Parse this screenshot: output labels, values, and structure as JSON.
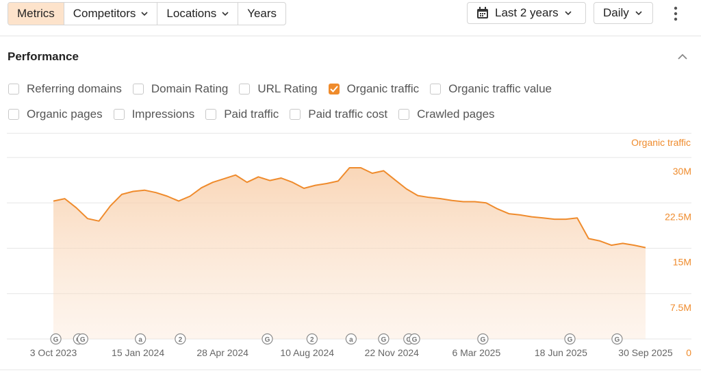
{
  "toolbar": {
    "tabs": [
      "Metrics",
      "Competitors",
      "Locations",
      "Years"
    ],
    "period": "Last 2 years",
    "interval": "Daily"
  },
  "panel": {
    "title": "Performance",
    "metrics": [
      [
        {
          "label": "Referring domains",
          "checked": false
        },
        {
          "label": "Domain Rating",
          "checked": false
        },
        {
          "label": "URL Rating",
          "checked": false
        },
        {
          "label": "Organic traffic",
          "checked": true
        },
        {
          "label": "Organic traffic value",
          "checked": false
        }
      ],
      [
        {
          "label": "Organic pages",
          "checked": false
        },
        {
          "label": "Impressions",
          "checked": false
        },
        {
          "label": "Paid traffic",
          "checked": false
        },
        {
          "label": "Paid traffic cost",
          "checked": false
        },
        {
          "label": "Crawled pages",
          "checked": false
        }
      ]
    ]
  },
  "chart_data": {
    "type": "area",
    "ylabel": "Organic traffic",
    "color": "#ef8b2c",
    "grid": true,
    "x": [
      "2023-10-03",
      "2023-10-17",
      "2023-10-31",
      "2023-11-14",
      "2023-11-28",
      "2023-12-12",
      "2023-12-26",
      "2024-01-09",
      "2024-01-23",
      "2024-02-06",
      "2024-02-20",
      "2024-03-05",
      "2024-03-19",
      "2024-04-02",
      "2024-04-16",
      "2024-04-30",
      "2024-05-14",
      "2024-05-28",
      "2024-06-11",
      "2024-06-25",
      "2024-07-09",
      "2024-07-23",
      "2024-08-06",
      "2024-08-20",
      "2024-09-03",
      "2024-09-17",
      "2024-10-01",
      "2024-10-15",
      "2024-10-29",
      "2024-11-12",
      "2024-11-26",
      "2024-12-10",
      "2024-12-24",
      "2025-01-07",
      "2025-01-21",
      "2025-02-04",
      "2025-02-18",
      "2025-03-04",
      "2025-03-18",
      "2025-04-01",
      "2025-04-15",
      "2025-04-29",
      "2025-05-13",
      "2025-05-27",
      "2025-06-10",
      "2025-06-24",
      "2025-07-08",
      "2025-07-22",
      "2025-08-05",
      "2025-08-19",
      "2025-09-02",
      "2025-09-16",
      "2025-09-30"
    ],
    "values": [
      22800000,
      23200000,
      21700000,
      19900000,
      19500000,
      22000000,
      23900000,
      24400000,
      24600000,
      24200000,
      23600000,
      22800000,
      23600000,
      25000000,
      25900000,
      26500000,
      27100000,
      25900000,
      26800000,
      26200000,
      26600000,
      25900000,
      24900000,
      25400000,
      25700000,
      26100000,
      28300000,
      28300000,
      27400000,
      27800000,
      26300000,
      24800000,
      23700000,
      23400000,
      23200000,
      22900000,
      22700000,
      22700000,
      22500000,
      21500000,
      20700000,
      20500000,
      20200000,
      20000000,
      19800000,
      19800000,
      20000000,
      16600000,
      16200000,
      15500000,
      15800000,
      15500000,
      15100000
    ],
    "xlim": [
      "2023-10-03",
      "2025-09-30"
    ],
    "xticks": [
      {
        "value": "2023-10-03",
        "label": "3 Oct 2023"
      },
      {
        "value": "2024-01-15",
        "label": "15 Jan 2024"
      },
      {
        "value": "2024-04-28",
        "label": "28 Apr 2024"
      },
      {
        "value": "2024-08-10",
        "label": "10 Aug 2024"
      },
      {
        "value": "2024-11-22",
        "label": "22 Nov 2024"
      },
      {
        "value": "2025-03-06",
        "label": "6 Mar 2025"
      },
      {
        "value": "2025-06-18",
        "label": "18 Jun 2025"
      },
      {
        "value": "2025-09-30",
        "label": "30 Sep 2025"
      }
    ],
    "ylim": [
      0,
      34000000
    ],
    "yticks": [
      0,
      {
        "value": 7500000,
        "label": "7.5M"
      },
      {
        "value": 15000000,
        "label": "15M"
      },
      {
        "value": 22500000,
        "label": "22.5M"
      },
      {
        "value": 30000000,
        "label": "30M"
      }
    ],
    "annotations": [
      {
        "x": "2023-10-06",
        "label": "G"
      },
      {
        "x": "2023-11-03",
        "label": "G"
      },
      {
        "x": "2023-11-08",
        "label": "G"
      },
      {
        "x": "2024-01-18",
        "label": "a"
      },
      {
        "x": "2024-03-07",
        "label": "2"
      },
      {
        "x": "2024-06-22",
        "label": "G"
      },
      {
        "x": "2024-08-16",
        "label": "2"
      },
      {
        "x": "2024-10-03",
        "label": "a"
      },
      {
        "x": "2024-11-12",
        "label": "G"
      },
      {
        "x": "2024-12-13",
        "label": "G"
      },
      {
        "x": "2024-12-20",
        "label": "G"
      },
      {
        "x": "2025-03-14",
        "label": "G"
      },
      {
        "x": "2025-06-29",
        "label": "G"
      },
      {
        "x": "2025-08-26",
        "label": "G"
      }
    ]
  }
}
